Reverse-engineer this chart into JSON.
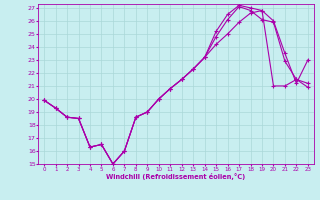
{
  "xlabel": "Windchill (Refroidissement éolien,°C)",
  "bg_color": "#c8eef0",
  "line_color": "#aa00aa",
  "grid_color": "#aad8d8",
  "xlim": [
    -0.5,
    23.5
  ],
  "ylim": [
    15,
    27.3
  ],
  "xticks": [
    0,
    1,
    2,
    3,
    4,
    5,
    6,
    7,
    8,
    9,
    10,
    11,
    12,
    13,
    14,
    15,
    16,
    17,
    18,
    19,
    20,
    21,
    22,
    23
  ],
  "yticks": [
    15,
    16,
    17,
    18,
    19,
    20,
    21,
    22,
    23,
    24,
    25,
    26,
    27
  ],
  "line1_x": [
    0,
    1,
    2,
    3,
    4,
    5,
    6,
    7,
    8,
    9,
    10,
    11,
    12,
    13,
    14,
    15,
    16,
    17,
    18,
    19,
    20,
    21,
    22,
    23
  ],
  "line1_y": [
    19.9,
    19.3,
    18.6,
    18.5,
    16.3,
    16.5,
    15.0,
    16.0,
    18.6,
    19.0,
    20.0,
    20.8,
    21.5,
    22.3,
    23.2,
    24.8,
    26.1,
    27.1,
    26.8,
    26.1,
    25.9,
    22.9,
    21.5,
    20.9
  ],
  "line2_x": [
    0,
    1,
    2,
    3,
    4,
    5,
    6,
    7,
    8,
    9,
    10,
    11,
    12,
    13,
    14,
    15,
    16,
    17,
    18,
    19,
    20,
    21,
    22,
    23
  ],
  "line2_y": [
    19.9,
    19.3,
    18.6,
    18.5,
    16.3,
    16.5,
    15.0,
    16.0,
    18.6,
    19.0,
    20.0,
    20.8,
    21.5,
    22.3,
    23.2,
    25.2,
    26.5,
    27.2,
    27.0,
    26.8,
    26.0,
    23.5,
    21.2,
    23.0
  ],
  "line3_x": [
    0,
    1,
    2,
    3,
    4,
    5,
    6,
    7,
    8,
    9,
    10,
    11,
    12,
    13,
    14,
    15,
    16,
    17,
    18,
    19,
    20,
    21,
    22,
    23
  ],
  "line3_y": [
    19.9,
    19.3,
    18.6,
    18.5,
    16.3,
    16.5,
    15.0,
    16.0,
    18.6,
    19.0,
    20.0,
    20.8,
    21.5,
    22.3,
    23.2,
    24.2,
    25.0,
    25.9,
    26.6,
    26.8,
    21.0,
    21.0,
    21.5,
    21.2
  ]
}
